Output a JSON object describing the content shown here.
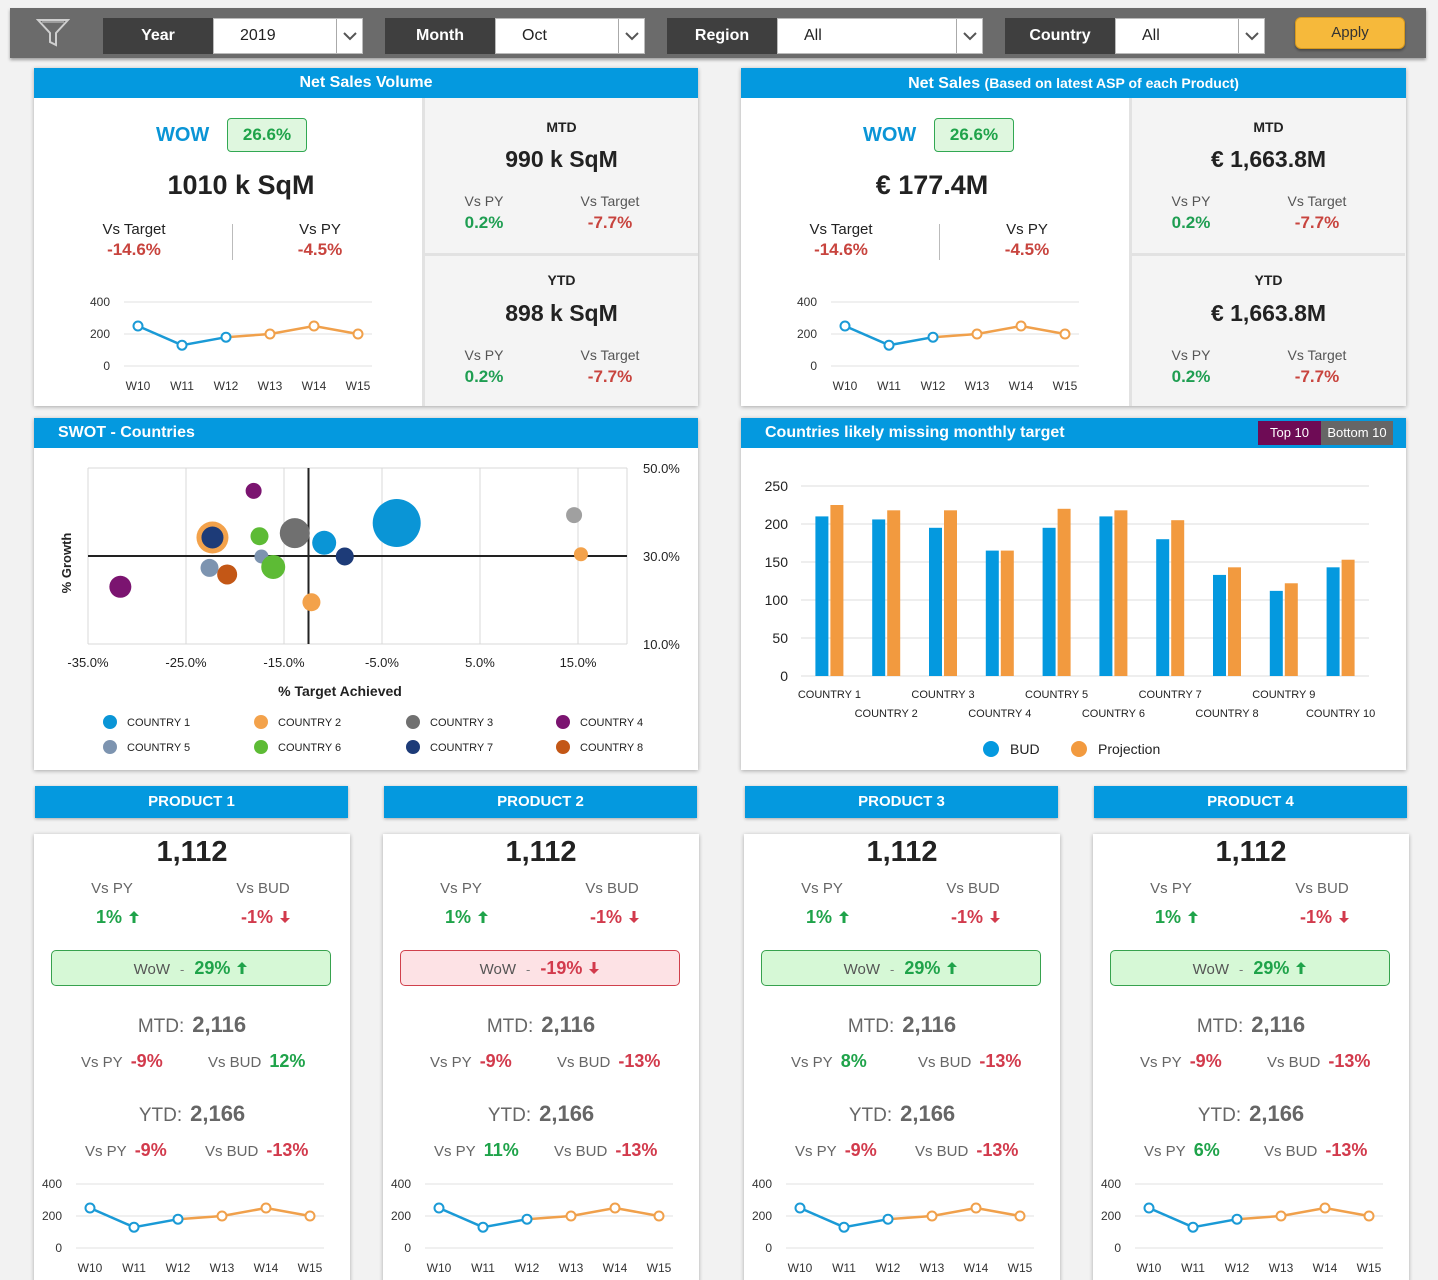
{
  "filters": {
    "year": {
      "label": "Year",
      "value": "2019"
    },
    "month": {
      "label": "Month",
      "value": "Oct"
    },
    "region": {
      "label": "Region",
      "value": "All"
    },
    "country": {
      "label": "Country",
      "value": "All"
    },
    "apply_label": "Apply"
  },
  "net_sales_volume": {
    "title": "Net Sales Volume",
    "wow_label": "WOW",
    "wow_value": "26.6%",
    "main_value": "1010 k SqM",
    "vs_target_label": "Vs Target",
    "vs_target_value": "-14.6%",
    "vs_py_label": "Vs PY",
    "vs_py_value": "-4.5%",
    "mtd": {
      "label": "MTD",
      "value": "990 k SqM",
      "vs_py_label": "Vs PY",
      "vs_py": "0.2%",
      "vs_target_label": "Vs Target",
      "vs_target": "-7.7%"
    },
    "ytd": {
      "label": "YTD",
      "value": "898 k SqM",
      "vs_py_label": "Vs PY",
      "vs_py": "0.2%",
      "vs_target_label": "Vs Target",
      "vs_target": "-7.7%"
    }
  },
  "net_sales": {
    "title": "Net Sales ",
    "title_note": "(Based on latest ASP of each Product)",
    "wow_label": "WOW",
    "wow_value": "26.6%",
    "main_value": "€ 177.4M",
    "vs_target_label": "Vs Target",
    "vs_target_value": "-14.6%",
    "vs_py_label": "Vs PY",
    "vs_py_value": "-4.5%",
    "mtd": {
      "label": "MTD",
      "value": "€ 1,663.8M",
      "vs_py_label": "Vs PY",
      "vs_py": "0.2%",
      "vs_target_label": "Vs Target",
      "vs_target": "-7.7%"
    },
    "ytd": {
      "label": "YTD",
      "value": "€ 1,663.8M",
      "vs_py_label": "Vs PY",
      "vs_py": "0.2%",
      "vs_target_label": "Vs Target",
      "vs_target": "-7.7%"
    }
  },
  "swot": {
    "title": "SWOT - Countries",
    "legend": [
      {
        "name": "COUNTRY 1",
        "color": "#0a95d6"
      },
      {
        "name": "COUNTRY 2",
        "color": "#f3a24b"
      },
      {
        "name": "COUNTRY 3",
        "color": "#707070"
      },
      {
        "name": "COUNTRY 4",
        "color": "#7b1470"
      },
      {
        "name": "COUNTRY 5",
        "color": "#7d94b0"
      },
      {
        "name": "COUNTRY 6",
        "color": "#5dbb35"
      },
      {
        "name": "COUNTRY 7",
        "color": "#1d3b78"
      },
      {
        "name": "COUNTRY 8",
        "color": "#c35716"
      }
    ]
  },
  "missing_target": {
    "title": "Countries likely missing monthly target",
    "toggle_top": "Top 10",
    "toggle_bottom": "Bottom 10"
  },
  "products": [
    {
      "title": "PRODUCT 1",
      "value": "1,112",
      "vs_py_label": "Vs PY",
      "vs_py": "1%",
      "vs_bud_label": "Vs BUD",
      "vs_bud": "-1%",
      "wow_label": "WoW",
      "wow_dash": "-",
      "wow": "29%",
      "wow_positive": true,
      "mtd_label": "MTD:",
      "mtd": "2,116",
      "mtd_vs_py": "-9%",
      "mtd_vs_py_pos": false,
      "mtd_vs_bud": "12%",
      "mtd_vs_bud_pos": true,
      "ytd_label": "YTD:",
      "ytd": "2,166",
      "ytd_vs_py": "-9%",
      "ytd_vs_py_pos": false,
      "ytd_vs_bud": "-13%",
      "ytd_vs_bud_pos": false
    },
    {
      "title": "PRODUCT 2",
      "value": "1,112",
      "vs_py_label": "Vs PY",
      "vs_py": "1%",
      "vs_bud_label": "Vs BUD",
      "vs_bud": "-1%",
      "wow_label": "WoW",
      "wow_dash": "-",
      "wow": "-19%",
      "wow_positive": false,
      "mtd_label": "MTD:",
      "mtd": "2,116",
      "mtd_vs_py": "-9%",
      "mtd_vs_py_pos": false,
      "mtd_vs_bud": "-13%",
      "mtd_vs_bud_pos": false,
      "ytd_label": "YTD:",
      "ytd": "2,166",
      "ytd_vs_py": "11%",
      "ytd_vs_py_pos": true,
      "ytd_vs_bud": "-13%",
      "ytd_vs_bud_pos": false
    },
    {
      "title": "PRODUCT 3",
      "value": "1,112",
      "vs_py_label": "Vs PY",
      "vs_py": "1%",
      "vs_bud_label": "Vs BUD",
      "vs_bud": "-1%",
      "wow_label": "WoW",
      "wow_dash": "-",
      "wow": "29%",
      "wow_positive": true,
      "mtd_label": "MTD:",
      "mtd": "2,116",
      "mtd_vs_py": "8%",
      "mtd_vs_py_pos": true,
      "mtd_vs_bud": "-13%",
      "mtd_vs_bud_pos": false,
      "ytd_label": "YTD:",
      "ytd": "2,166",
      "ytd_vs_py": "-9%",
      "ytd_vs_py_pos": false,
      "ytd_vs_bud": "-13%",
      "ytd_vs_bud_pos": false
    },
    {
      "title": "PRODUCT 4",
      "value": "1,112",
      "vs_py_label": "Vs PY",
      "vs_py": "1%",
      "vs_bud_label": "Vs BUD",
      "vs_bud": "-1%",
      "wow_label": "WoW",
      "wow_dash": "-",
      "wow": "29%",
      "wow_positive": true,
      "mtd_label": "MTD:",
      "mtd": "2,116",
      "mtd_vs_py": "-9%",
      "mtd_vs_py_pos": false,
      "mtd_vs_bud": "-13%",
      "mtd_vs_bud_pos": false,
      "ytd_label": "YTD:",
      "ytd": "2,166",
      "ytd_vs_py": "6%",
      "ytd_vs_py_pos": true,
      "ytd_vs_bud": "-13%",
      "ytd_vs_bud_pos": false
    }
  ],
  "colors": {
    "accent": "#0499df",
    "actual_line": "#1a9ad6",
    "projection_line": "#f0a04b",
    "positive": "#1fa34a",
    "negative": "#d23a4c"
  },
  "chart_data": [
    {
      "id": "weekly_trend",
      "type": "line",
      "x": [
        "W10",
        "W11",
        "W12",
        "W13",
        "W14",
        "W15"
      ],
      "series": [
        {
          "values": [
            250,
            130,
            180,
            200,
            250,
            200
          ]
        }
      ],
      "actual_count": 3,
      "yticks": [
        0,
        200,
        400
      ],
      "ylim": [
        0,
        400
      ]
    },
    {
      "id": "swot_countries",
      "type": "scatter",
      "xlabel": "% Target Achieved",
      "ylabel": "% Growth",
      "xticks": [
        "-35.0%",
        "-25.0%",
        "-15.0%",
        "-5.0%",
        "5.0%",
        "15.0%"
      ],
      "xlim": [
        -35,
        20
      ],
      "yticks": [
        "10.0%",
        "30.0%",
        "50.0%"
      ],
      "ylim": [
        10,
        50
      ],
      "xref": -12.5,
      "yref": 30,
      "points": [
        {
          "x": -31.7,
          "y": 23,
          "r": 11,
          "color": "#7b1470"
        },
        {
          "x": -22.3,
          "y": 34.2,
          "r": 16,
          "color": "#f3a24b"
        },
        {
          "x": -22.3,
          "y": 34.2,
          "r": 11,
          "color": "#1d3b78"
        },
        {
          "x": -22.6,
          "y": 27.3,
          "r": 9,
          "color": "#7d94b0"
        },
        {
          "x": -20.8,
          "y": 25.8,
          "r": 10,
          "color": "#c35716"
        },
        {
          "x": -18.1,
          "y": 44.8,
          "r": 8,
          "color": "#7b1470"
        },
        {
          "x": -17.5,
          "y": 34.5,
          "r": 9,
          "color": "#5dbb35"
        },
        {
          "x": -17.3,
          "y": 29.9,
          "r": 7,
          "color": "#7d94b0"
        },
        {
          "x": -16.1,
          "y": 27.5,
          "r": 12,
          "color": "#5dbb35"
        },
        {
          "x": -13.9,
          "y": 35.2,
          "r": 15,
          "color": "#707070"
        },
        {
          "x": -12.2,
          "y": 19.5,
          "r": 9,
          "color": "#f3a24b"
        },
        {
          "x": -10.9,
          "y": 33.0,
          "r": 12,
          "color": "#0a95d6"
        },
        {
          "x": -8.8,
          "y": 29.9,
          "r": 9,
          "color": "#1d3b78"
        },
        {
          "x": -3.5,
          "y": 37.5,
          "r": 24,
          "color": "#0a95d6"
        },
        {
          "x": 14.6,
          "y": 39.3,
          "r": 8,
          "color": "#a0a0a0"
        },
        {
          "x": 15.3,
          "y": 30.4,
          "r": 7,
          "color": "#f3a24b"
        }
      ]
    },
    {
      "id": "missing_target",
      "type": "bar",
      "categories": [
        "COUNTRY 1",
        "COUNTRY 2",
        "COUNTRY 3",
        "COUNTRY 4",
        "COUNTRY 5",
        "COUNTRY 6",
        "COUNTRY 7",
        "COUNTRY 8",
        "COUNTRY 9",
        "COUNTRY 10"
      ],
      "series": [
        {
          "name": "BUD",
          "color": "#0499df",
          "values": [
            210,
            206,
            195,
            165,
            195,
            210,
            180,
            133,
            112,
            143
          ]
        },
        {
          "name": "Projection",
          "color": "#f29a3f",
          "values": [
            225,
            218,
            218,
            165,
            220,
            218,
            205,
            143,
            122,
            153
          ]
        }
      ],
      "yticks": [
        0,
        50,
        100,
        150,
        200,
        250
      ],
      "ylim": [
        0,
        250
      ]
    }
  ]
}
